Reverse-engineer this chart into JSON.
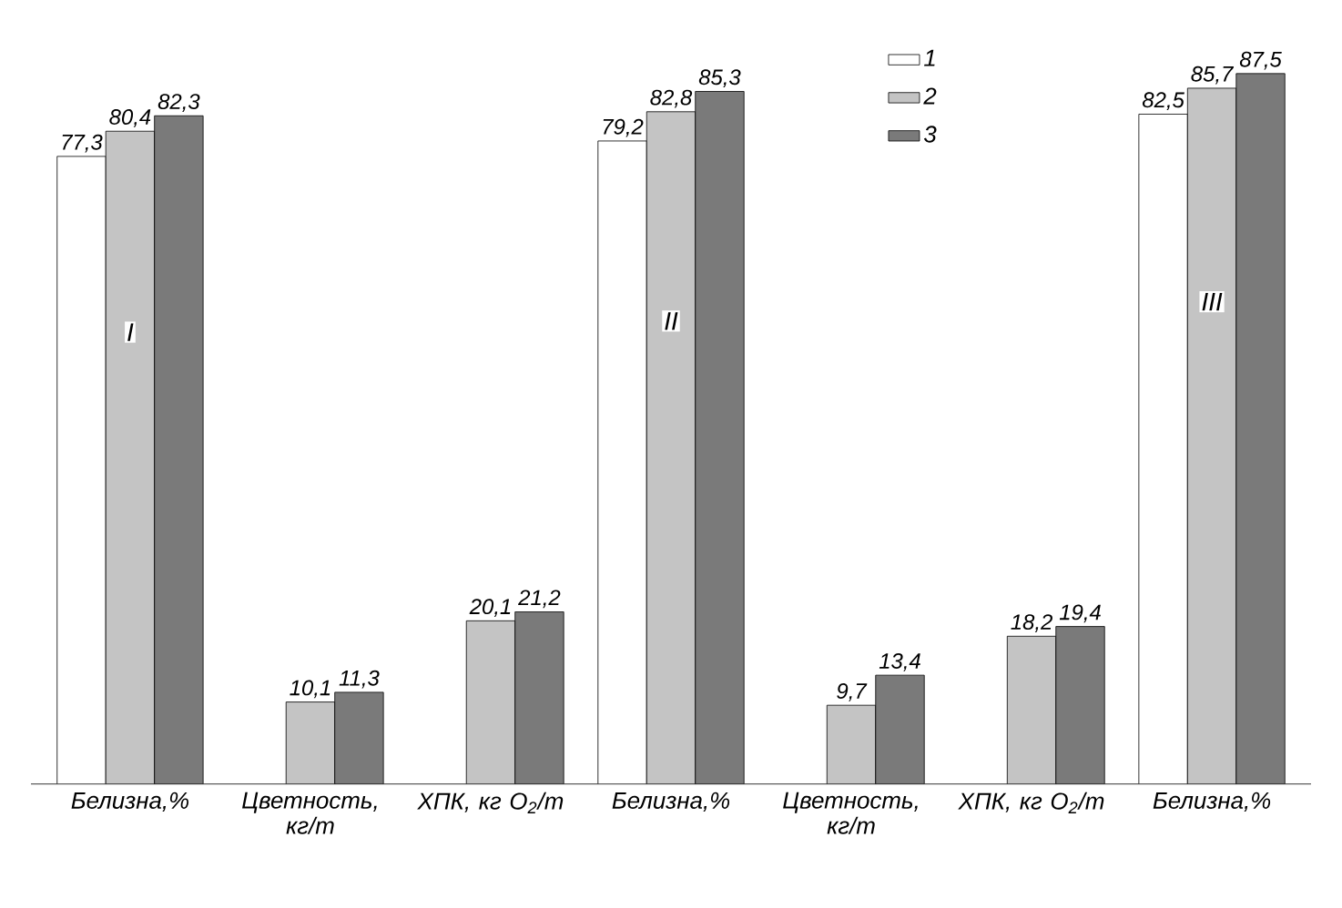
{
  "chart_data": {
    "type": "bar",
    "categories": [
      "Белизна,%",
      "Цветность, кг/т",
      "ХПК, кг O$_{2}$/т",
      "Белизна,%",
      "Цветность, кг/т",
      "ХПК, кг O$_{2}$/т",
      "Белизна,%"
    ],
    "series": [
      {
        "name": "1",
        "color": "#ffffff",
        "values": [
          77.3,
          null,
          null,
          79.2,
          null,
          null,
          82.5
        ],
        "value_labels": [
          "77,3",
          null,
          null,
          "79,2",
          null,
          null,
          "82,5"
        ]
      },
      {
        "name": "2",
        "color": "#c4c4c4",
        "values": [
          80.4,
          10.1,
          20.1,
          82.8,
          9.7,
          18.2,
          85.7
        ],
        "value_labels": [
          "80,4",
          "10,1",
          "20,1",
          "82,8",
          "9,7",
          "18,2",
          "85,7"
        ]
      },
      {
        "name": "3",
        "color": "#7a7a7a",
        "values": [
          82.3,
          11.3,
          21.2,
          85.3,
          13.4,
          19.4,
          87.5
        ],
        "value_labels": [
          "82,3",
          "11,3",
          "21,2",
          "85,3",
          "13,4",
          "19,4",
          "87,5"
        ]
      }
    ],
    "annotations": [
      "I",
      "II",
      "III"
    ],
    "legend": "top",
    "tick_labels": "x"
  }
}
